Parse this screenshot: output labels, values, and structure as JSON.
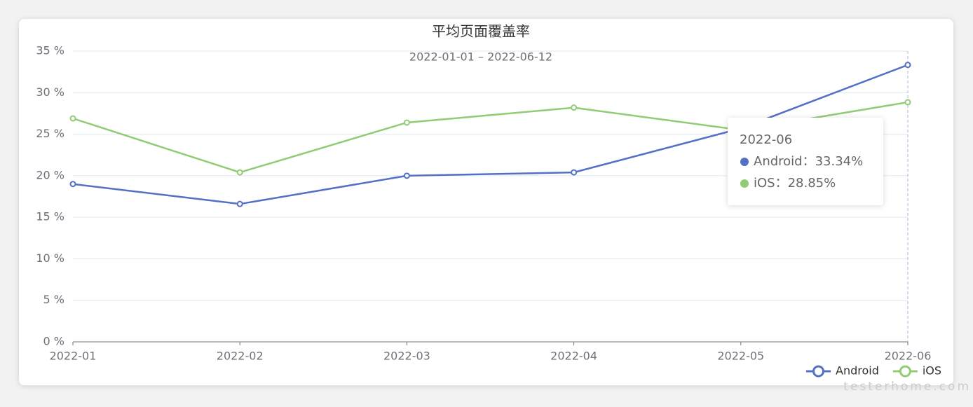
{
  "chart_data": {
    "type": "line",
    "title": "平均页面覆盖率",
    "subtitle": "2022-01-01 – 2022-06-12",
    "categories": [
      "2022-01",
      "2022-02",
      "2022-03",
      "2022-04",
      "2022-05",
      "2022-06"
    ],
    "series": [
      {
        "name": "Android",
        "color": "#5470c6",
        "values": [
          19.0,
          16.6,
          20.0,
          20.4,
          25.7,
          33.34
        ]
      },
      {
        "name": "iOS",
        "color": "#91cc75",
        "values": [
          26.9,
          20.4,
          26.4,
          28.2,
          25.5,
          28.85
        ]
      }
    ],
    "ylim": [
      0,
      35
    ],
    "yticks": [
      {
        "value": 0,
        "label": "0 %"
      },
      {
        "value": 5,
        "label": "5 %"
      },
      {
        "value": 10,
        "label": "10 %"
      },
      {
        "value": 15,
        "label": "15 %"
      },
      {
        "value": 20,
        "label": "20 %"
      },
      {
        "value": 25,
        "label": "25 %"
      },
      {
        "value": 30,
        "label": "30 %"
      },
      {
        "value": 35,
        "label": "35 %"
      }
    ],
    "grid": true,
    "legend": "bottom-right",
    "tooltip": {
      "title": "2022-06",
      "entries": [
        "Android：33.34%",
        "iOS：28.85%"
      ]
    },
    "watermark": "testerhome.com"
  }
}
